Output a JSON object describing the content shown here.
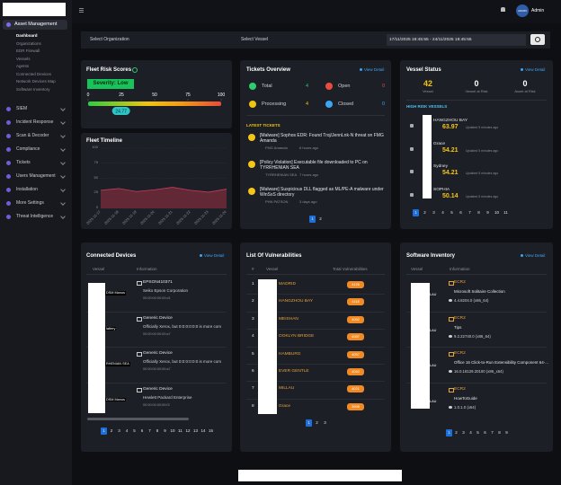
{
  "sidebar": {
    "active_group": "Asset Management",
    "sub_items": [
      "Dashboard",
      "Organizations",
      "EDR Firewall",
      "Vessels",
      "Agents",
      "Connected Devices",
      "Network Devices Map",
      "Software Inventory"
    ],
    "items": [
      "SIEM",
      "Incident Response",
      "Scan & Decoder",
      "Compliance",
      "Tickets",
      "Users Management",
      "Installation",
      "More Settings",
      "Threat Intelligence"
    ]
  },
  "topbar": {
    "avatar": "ADMIN",
    "user": "Admin"
  },
  "filters": {
    "organization": "Select Organization",
    "vessel": "Select Vessel",
    "date_range": "17/11/2025 18:45:55 - 24/11/2025 18:45:55"
  },
  "fleet_risk": {
    "title": "Fleet Risk Scores",
    "severity": "Severity: Low",
    "ticks": [
      0,
      25,
      50,
      75,
      100
    ],
    "score": 24.77
  },
  "fleet_timeline": {
    "title": "Fleet Timeline",
    "type": "area",
    "x": [
      "2025-11-17",
      "2025-11-18",
      "2025-11-19",
      "2025-11-20",
      "2025-11-21",
      "2025-11-22",
      "2025-11-23",
      "2025-11-24"
    ],
    "values": [
      30,
      33,
      28,
      31,
      35,
      30,
      27,
      32
    ],
    "ylim": [
      0,
      100
    ],
    "yticks": [
      0,
      25,
      50,
      75,
      100
    ],
    "color": "#6e2a3a"
  },
  "tickets": {
    "title": "Tickets Overview",
    "view_detail": "View Detail",
    "stats": [
      {
        "label": "Total",
        "value": 4
      },
      {
        "label": "Open",
        "value": 0
      },
      {
        "label": "Processing",
        "value": 4
      },
      {
        "label": "Closed",
        "value": 0
      }
    ],
    "latest_title": "LATEST TICKETS",
    "items": [
      {
        "title": "[Malware] Sophos EDR: Found Troj/JennLnk-N threat on FMG Amanda",
        "vessel": "FMG Amanda",
        "time": "6 hours ago"
      },
      {
        "title": "[Policy Violation] Executable file downloaded to PC on TYRRHENIAN SEA",
        "vessel": "TYRRHENIAN SEA",
        "time": "7 hours ago"
      },
      {
        "title": "[Malware] Suspicious DLL flagged as ML/PE-A malware under WinSxS directory",
        "vessel": "PHN PATSON",
        "time": "3 days ago"
      }
    ],
    "pages": [
      1,
      2
    ]
  },
  "vessel_status": {
    "title": "Vessel Status",
    "view_detail": "View Detail",
    "stats": [
      {
        "value": 42,
        "label": "Vessel"
      },
      {
        "value": 0,
        "label": "Vessel at Risk"
      },
      {
        "value": 0,
        "label": "Asset at Risk"
      }
    ],
    "high_risk_title": "HIGH RISK VESSELS",
    "vessels": [
      {
        "name": "HANGZHOU BAY",
        "score": 63.97,
        "updated": "Updated 5 minutes ago"
      },
      {
        "name": "Grace",
        "score": 54.21,
        "updated": "Updated 5 minutes ago"
      },
      {
        "name": "Sydney",
        "score": 54.21,
        "updated": "Updated 5 minutes ago"
      },
      {
        "name": "SOPHIA",
        "score": 50.14,
        "updated": "Updated 5 minutes ago"
      }
    ],
    "pages": [
      1,
      2,
      3,
      4,
      5,
      6,
      7,
      8,
      9,
      10,
      11
    ]
  },
  "connected_devices": {
    "title": "Connected Devices",
    "view_detail": "View Detail",
    "columns": [
      "Vessel",
      "Information"
    ],
    "rows": [
      {
        "vessel": "DSM Manus",
        "name": "EPSON410371",
        "maker": "Seiko Epson Corporation",
        "mac": "00:00:00:00:00:c5"
      },
      {
        "vessel": "lattery",
        "name": "Generic Device",
        "maker": "Officially Xerox, but 0:0:0:0:0:0 is more com",
        "mac": "00:00:00:00:00:a7"
      },
      {
        "vessel": "RHENIAN SEA",
        "name": "Generic Device",
        "maker": "Officially Xerox, but 0:0:0:0:0:0 is more com",
        "mac": "00:00:00:00:00:a7"
      },
      {
        "vessel": "DSM Manus",
        "name": "Generic Device",
        "maker": "Hewlett Packard Enterprise",
        "mac": "00:00:00:00:00:f3"
      }
    ],
    "pages": [
      1,
      2,
      3,
      4,
      5,
      6,
      7,
      8,
      9,
      10,
      11,
      12,
      13,
      14,
      15
    ]
  },
  "vulnerabilities": {
    "title": "List Of Vulnerabilities",
    "columns": [
      "#",
      "Vessel",
      "Total Vulnerabilities"
    ],
    "rows": [
      {
        "index": 1,
        "vessel": "MADRID",
        "total": 4126
      },
      {
        "index": 2,
        "vessel": "HANGZHOU BAY",
        "total": 4118
      },
      {
        "index": 3,
        "vessel": "MEISHAN",
        "total": 4092
      },
      {
        "index": 4,
        "vessel": "OOKLYN BRIDGE",
        "total": 4087
      },
      {
        "index": 5,
        "vessel": "HAMBURG",
        "total": 4057
      },
      {
        "index": 6,
        "vessel": "EVER GENTLE",
        "total": 4040
      },
      {
        "index": 7,
        "vessel": "MILLAU",
        "total": 4021
      },
      {
        "index": 8,
        "vessel": "Grace",
        "total": 3998
      }
    ],
    "pages": [
      1,
      2,
      3
    ]
  },
  "software_inventory": {
    "title": "Software Inventory",
    "view_detail": "View Detail",
    "columns": [
      "Vessel",
      "Information"
    ],
    "rows": [
      {
        "vessel": "LAU",
        "host": "ECR2",
        "name": "Microsoft Solitaire Collection",
        "version": "4.4.8204.0 (x86_64)"
      },
      {
        "vessel": "LAU",
        "host": "ECR2",
        "name": "Tips",
        "version": "9.2.22740.0 (x86_64)"
      },
      {
        "vessel": "LAU",
        "host": "ECR2",
        "name": "Office 16 Click-to-Run Extensibility Component 64-...",
        "version": "16.0.18129.20100 (x86_x64)"
      },
      {
        "vessel": "LAU",
        "host": "ECR2",
        "name": "HowToGuide",
        "version": "1.0.1.0 (x64)"
      }
    ],
    "pages": [
      1,
      2,
      3,
      4,
      5,
      6,
      7,
      8,
      9
    ]
  }
}
